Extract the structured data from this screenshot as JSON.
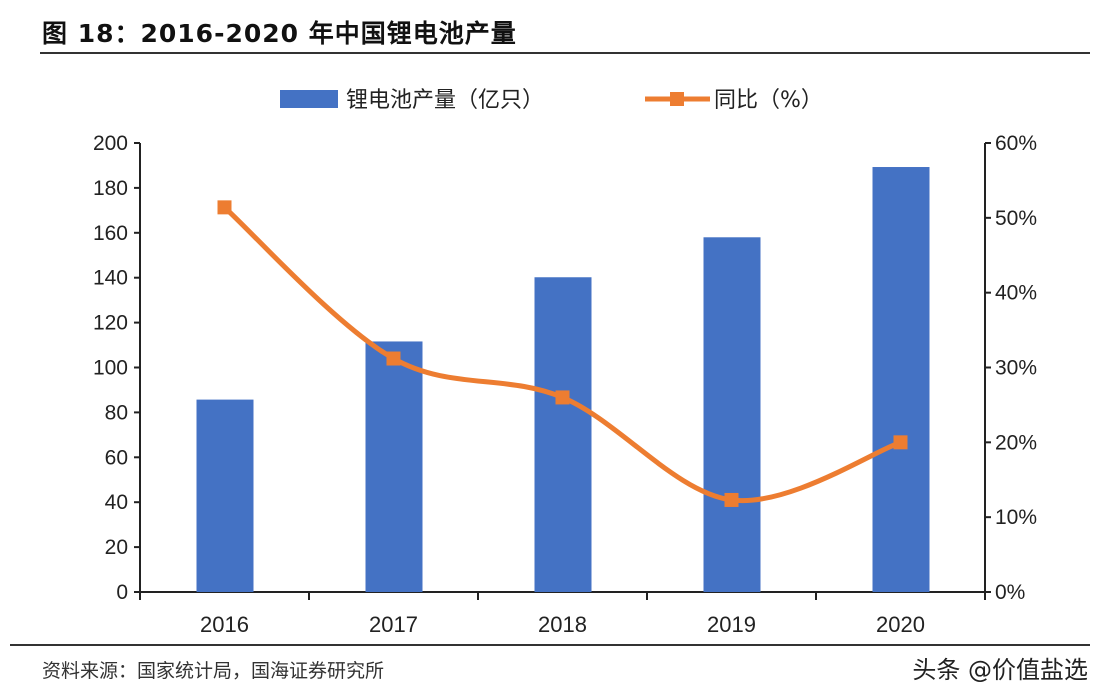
{
  "title": "图 18：2016-2020 年中国锂电池产量",
  "source": "资料来源：国家统计局，国海证券研究所",
  "watermark": "头条 @价值盐选",
  "chart_data": {
    "type": "bar+line",
    "categories": [
      "2016",
      "2017",
      "2018",
      "2019",
      "2020"
    ],
    "series": [
      {
        "name": "锂电池产量（亿只）",
        "type": "bar",
        "axis": "left",
        "color": "#4472C4",
        "values": [
          85.7,
          111.6,
          140.2,
          158.0,
          189.3
        ]
      },
      {
        "name": "同比（%）",
        "type": "line",
        "axis": "right",
        "color": "#ED7D31",
        "marker": "square",
        "smooth": true,
        "values": [
          51.4,
          31.2,
          26.0,
          12.3,
          20.0
        ]
      }
    ],
    "left_axis": {
      "ylim": [
        0,
        200
      ],
      "ticks": [
        "0",
        "20",
        "40",
        "60",
        "80",
        "100",
        "120",
        "140",
        "160",
        "180",
        "200"
      ]
    },
    "right_axis": {
      "ylim": [
        0,
        60
      ],
      "ticks": [
        "0%",
        "10%",
        "20%",
        "30%",
        "40%",
        "50%",
        "60%"
      ]
    },
    "grid": false,
    "legend_position": "top"
  }
}
